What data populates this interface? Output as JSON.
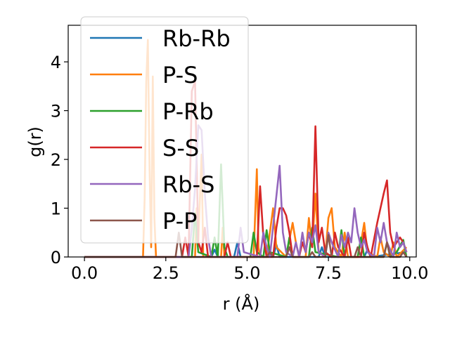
{
  "chart_data": {
    "type": "line",
    "title": "",
    "xlabel": "r (Å)",
    "ylabel": "g(r)",
    "xlim": [
      -0.5,
      10.2
    ],
    "ylim": [
      0,
      4.75
    ],
    "xticks": [
      0.0,
      2.5,
      5.0,
      7.5,
      10.0
    ],
    "xtick_labels": [
      "0.0",
      "2.5",
      "5.0",
      "7.5",
      "10.0"
    ],
    "yticks": [
      0,
      1,
      2,
      3,
      4
    ],
    "ytick_labels": [
      "0",
      "1",
      "2",
      "3",
      "4"
    ],
    "grid": false,
    "legend_position": "upper-left",
    "series": [
      {
        "name": "Rb-Rb",
        "color": "#1f77b4",
        "points": [
          [
            0.0,
            0.0
          ],
          [
            3.9,
            0.0
          ],
          [
            4.0,
            0.15
          ],
          [
            4.1,
            0.0
          ],
          [
            4.6,
            0.0
          ],
          [
            4.7,
            0.3
          ],
          [
            4.8,
            0.0
          ],
          [
            5.8,
            0.0
          ],
          [
            5.9,
            0.25
          ],
          [
            6.0,
            0.0
          ],
          [
            7.2,
            0.0
          ],
          [
            7.3,
            0.2
          ],
          [
            7.4,
            0.0
          ],
          [
            8.6,
            0.0
          ],
          [
            8.7,
            0.15
          ],
          [
            8.8,
            0.0
          ],
          [
            9.9,
            0.1
          ]
        ]
      },
      {
        "name": "P-S",
        "color": "#ff7f0e",
        "points": [
          [
            0.0,
            0.0
          ],
          [
            1.8,
            0.0
          ],
          [
            1.85,
            1.2
          ],
          [
            1.9,
            3.6
          ],
          [
            1.95,
            4.45
          ],
          [
            2.0,
            1.8
          ],
          [
            2.05,
            0.2
          ],
          [
            2.1,
            3.7
          ],
          [
            2.15,
            0.8
          ],
          [
            2.2,
            0.0
          ],
          [
            3.4,
            0.0
          ],
          [
            3.45,
            1.0
          ],
          [
            3.5,
            0.3
          ],
          [
            3.6,
            2.1
          ],
          [
            3.65,
            0.0
          ],
          [
            4.2,
            0.0
          ],
          [
            4.25,
            0.6
          ],
          [
            4.3,
            0.0
          ],
          [
            5.2,
            0.0
          ],
          [
            5.3,
            1.8
          ],
          [
            5.35,
            0.2
          ],
          [
            5.4,
            0.0
          ],
          [
            5.6,
            0.0
          ],
          [
            5.7,
            0.5
          ],
          [
            5.8,
            1.0
          ],
          [
            5.9,
            0.2
          ],
          [
            6.2,
            0.0
          ],
          [
            6.4,
            0.7
          ],
          [
            6.5,
            0.3
          ],
          [
            6.6,
            0.0
          ],
          [
            6.8,
            0.0
          ],
          [
            6.9,
            0.8
          ],
          [
            7.0,
            0.2
          ],
          [
            7.1,
            1.3
          ],
          [
            7.2,
            0.1
          ],
          [
            7.4,
            0.0
          ],
          [
            7.5,
            0.8
          ],
          [
            7.6,
            1.0
          ],
          [
            7.7,
            0.2
          ],
          [
            7.9,
            0.0
          ],
          [
            8.0,
            0.5
          ],
          [
            8.1,
            0.0
          ],
          [
            8.4,
            0.0
          ],
          [
            8.5,
            0.3
          ],
          [
            8.6,
            0.7
          ],
          [
            8.7,
            0.1
          ],
          [
            9.0,
            0.0
          ],
          [
            9.1,
            0.4
          ],
          [
            9.2,
            0.1
          ],
          [
            9.4,
            0.0
          ],
          [
            9.5,
            0.3
          ],
          [
            9.6,
            0.0
          ],
          [
            9.9,
            0.2
          ]
        ]
      },
      {
        "name": "P-Rb",
        "color": "#2ca02c",
        "points": [
          [
            0.0,
            0.0
          ],
          [
            3.3,
            0.0
          ],
          [
            3.4,
            0.9
          ],
          [
            3.5,
            0.1
          ],
          [
            3.9,
            0.0
          ],
          [
            4.0,
            0.4
          ],
          [
            4.1,
            0.0
          ],
          [
            4.2,
            1.9
          ],
          [
            4.3,
            0.2
          ],
          [
            4.4,
            0.0
          ],
          [
            5.1,
            0.0
          ],
          [
            5.2,
            0.5
          ],
          [
            5.3,
            0.1
          ],
          [
            5.5,
            0.0
          ],
          [
            5.6,
            0.55
          ],
          [
            5.7,
            0.1
          ],
          [
            6.2,
            0.0
          ],
          [
            6.3,
            0.4
          ],
          [
            6.4,
            0.0
          ],
          [
            6.9,
            0.0
          ],
          [
            7.0,
            0.6
          ],
          [
            7.1,
            0.1
          ],
          [
            7.8,
            0.0
          ],
          [
            7.9,
            0.55
          ],
          [
            8.0,
            0.0
          ],
          [
            8.4,
            0.0
          ],
          [
            8.5,
            0.4
          ],
          [
            8.6,
            0.0
          ],
          [
            9.2,
            0.0
          ],
          [
            9.3,
            0.3
          ],
          [
            9.4,
            0.0
          ],
          [
            9.6,
            0.1
          ],
          [
            9.8,
            0.35
          ],
          [
            9.9,
            0.0
          ]
        ]
      },
      {
        "name": "S-S",
        "color": "#d62728",
        "points": [
          [
            0.0,
            0.0
          ],
          [
            3.0,
            0.0
          ],
          [
            3.1,
            0.4
          ],
          [
            3.2,
            0.0
          ],
          [
            3.3,
            3.4
          ],
          [
            3.4,
            3.6
          ],
          [
            3.5,
            0.3
          ],
          [
            3.6,
            0.1
          ],
          [
            3.7,
            0.6
          ],
          [
            3.8,
            0.0
          ],
          [
            4.3,
            0.0
          ],
          [
            4.4,
            0.3
          ],
          [
            4.5,
            0.0
          ],
          [
            5.3,
            0.0
          ],
          [
            5.4,
            1.45
          ],
          [
            5.5,
            0.4
          ],
          [
            5.6,
            0.0
          ],
          [
            5.8,
            0.0
          ],
          [
            5.9,
            0.6
          ],
          [
            6.0,
            1.0
          ],
          [
            6.1,
            1.0
          ],
          [
            6.2,
            0.85
          ],
          [
            6.3,
            0.5
          ],
          [
            6.4,
            0.0
          ],
          [
            6.6,
            0.0
          ],
          [
            6.7,
            0.3
          ],
          [
            6.8,
            0.1
          ],
          [
            6.9,
            0.5
          ],
          [
            7.0,
            0.2
          ],
          [
            7.1,
            2.68
          ],
          [
            7.2,
            0.3
          ],
          [
            7.3,
            0.6
          ],
          [
            7.4,
            0.1
          ],
          [
            7.6,
            0.0
          ],
          [
            7.7,
            0.5
          ],
          [
            7.8,
            0.2
          ],
          [
            8.0,
            0.0
          ],
          [
            8.1,
            0.4
          ],
          [
            8.2,
            0.0
          ],
          [
            8.5,
            0.0
          ],
          [
            8.6,
            0.5
          ],
          [
            8.7,
            0.2
          ],
          [
            8.8,
            0.0
          ],
          [
            9.0,
            0.7
          ],
          [
            9.1,
            1.0
          ],
          [
            9.2,
            1.3
          ],
          [
            9.3,
            1.57
          ],
          [
            9.4,
            0.5
          ],
          [
            9.5,
            0.2
          ],
          [
            9.7,
            0.4
          ],
          [
            9.8,
            0.3
          ],
          [
            9.9,
            0.1
          ]
        ]
      },
      {
        "name": "Rb-S",
        "color": "#9467bd",
        "points": [
          [
            0.0,
            0.0
          ],
          [
            3.2,
            0.0
          ],
          [
            3.3,
            0.6
          ],
          [
            3.4,
            1.4
          ],
          [
            3.5,
            2.7
          ],
          [
            3.6,
            2.6
          ],
          [
            3.7,
            1.3
          ],
          [
            3.8,
            0.4
          ],
          [
            3.9,
            0.0
          ],
          [
            4.7,
            0.0
          ],
          [
            4.8,
            0.6
          ],
          [
            4.9,
            0.1
          ],
          [
            5.4,
            0.0
          ],
          [
            5.5,
            0.5
          ],
          [
            5.6,
            0.2
          ],
          [
            5.7,
            0.0
          ],
          [
            6.0,
            1.87
          ],
          [
            6.1,
            0.5
          ],
          [
            6.2,
            0.1
          ],
          [
            6.4,
            0.0
          ],
          [
            6.5,
            0.3
          ],
          [
            6.6,
            0.0
          ],
          [
            6.7,
            0.5
          ],
          [
            6.8,
            0.1
          ],
          [
            6.9,
            0.5
          ],
          [
            7.0,
            0.3
          ],
          [
            7.1,
            0.65
          ],
          [
            7.2,
            0.1
          ],
          [
            7.4,
            0.0
          ],
          [
            7.5,
            0.5
          ],
          [
            7.6,
            0.3
          ],
          [
            7.8,
            0.0
          ],
          [
            7.9,
            0.45
          ],
          [
            8.0,
            0.2
          ],
          [
            8.1,
            0.5
          ],
          [
            8.2,
            0.3
          ],
          [
            8.3,
            1.0
          ],
          [
            8.4,
            0.5
          ],
          [
            8.5,
            0.2
          ],
          [
            8.6,
            0.35
          ],
          [
            8.7,
            0.1
          ],
          [
            8.9,
            0.0
          ],
          [
            9.0,
            0.6
          ],
          [
            9.1,
            0.3
          ],
          [
            9.2,
            0.7
          ],
          [
            9.3,
            0.3
          ],
          [
            9.5,
            0.0
          ],
          [
            9.6,
            0.5
          ],
          [
            9.7,
            0.2
          ],
          [
            9.8,
            0.3
          ],
          [
            9.9,
            0.1
          ]
        ]
      },
      {
        "name": "P-P",
        "color": "#8c564b",
        "points": [
          [
            0.0,
            0.0
          ],
          [
            2.8,
            0.0
          ],
          [
            2.9,
            0.5
          ],
          [
            3.0,
            0.0
          ],
          [
            5.6,
            0.0
          ],
          [
            5.7,
            0.1
          ],
          [
            5.8,
            0.0
          ],
          [
            6.2,
            0.0
          ],
          [
            6.3,
            0.2
          ],
          [
            6.4,
            0.0
          ],
          [
            6.9,
            0.0
          ],
          [
            7.0,
            0.1
          ],
          [
            7.1,
            0.0
          ],
          [
            7.4,
            0.0
          ],
          [
            7.5,
            0.45
          ],
          [
            7.6,
            0.0
          ],
          [
            8.3,
            0.0
          ],
          [
            8.4,
            0.2
          ],
          [
            8.5,
            0.0
          ],
          [
            9.2,
            0.0
          ],
          [
            9.3,
            0.3
          ],
          [
            9.4,
            0.0
          ],
          [
            9.7,
            0.0
          ],
          [
            9.8,
            0.1
          ],
          [
            9.9,
            0.0
          ]
        ]
      }
    ]
  }
}
